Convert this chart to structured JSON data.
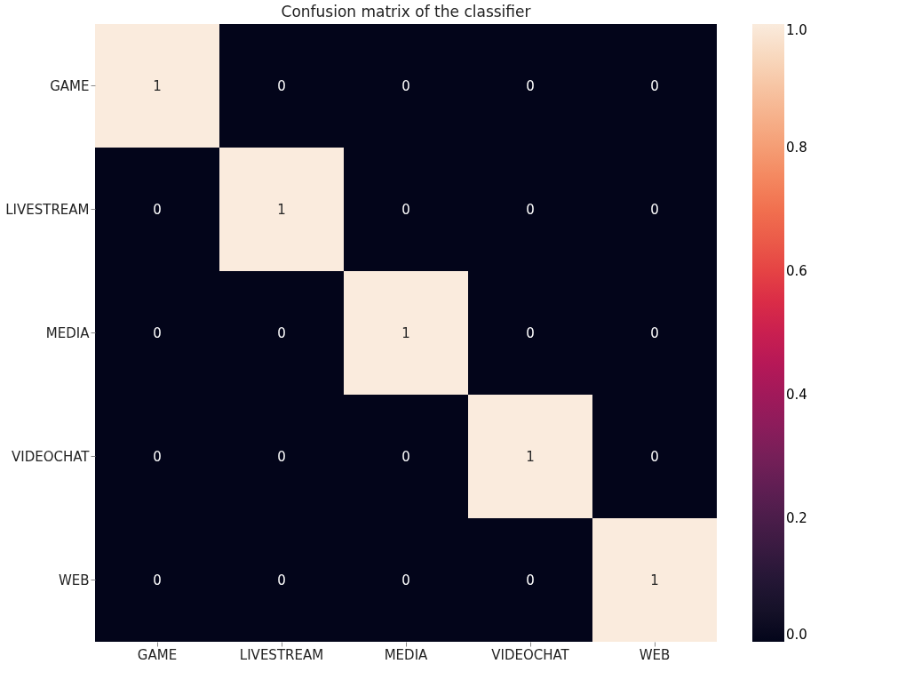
{
  "chart_data": {
    "type": "heatmap",
    "title": "Confusion matrix of the classifier",
    "categories": [
      "GAME",
      "LIVESTREAM",
      "MEDIA",
      "VIDEOCHAT",
      "WEB"
    ],
    "y_categories": [
      "GAME",
      "LIVESTREAM",
      "MEDIA",
      "VIDEOCHAT",
      "WEB"
    ],
    "cells": [
      [
        1,
        0,
        0,
        0,
        0
      ],
      [
        0,
        1,
        0,
        0,
        0
      ],
      [
        0,
        0,
        1,
        0,
        0
      ],
      [
        0,
        0,
        0,
        1,
        0
      ],
      [
        0,
        0,
        0,
        0,
        1
      ]
    ],
    "clim": [
      0,
      1
    ],
    "cticks": [
      {
        "value": 0,
        "label": "0.0"
      },
      {
        "value": 0.2,
        "label": "0.2"
      },
      {
        "value": 0.4,
        "label": "0.4"
      },
      {
        "value": 0.6,
        "label": "0.6"
      },
      {
        "value": 0.8,
        "label": "0.8"
      },
      {
        "value": 1,
        "label": "1.0"
      }
    ],
    "data_labels": true
  }
}
